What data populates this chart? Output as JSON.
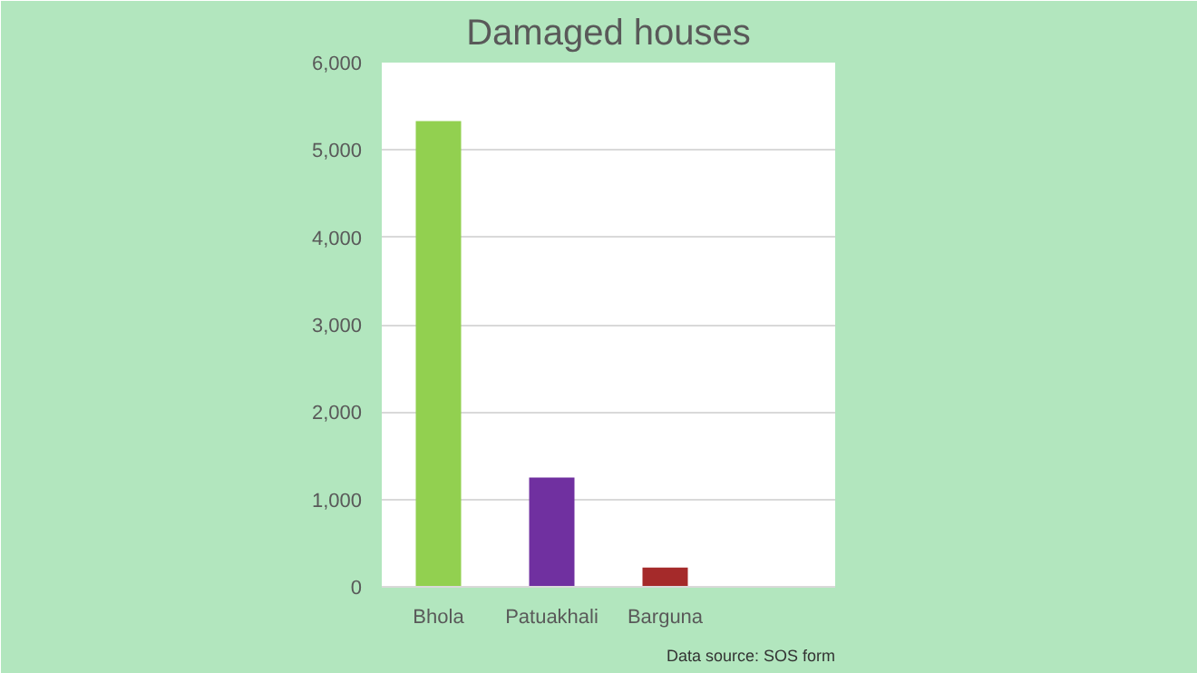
{
  "chart_data": {
    "type": "bar",
    "title": "Damaged houses",
    "categories": [
      "Bhola",
      "Patuakhali",
      "Barguna",
      null
    ],
    "values": [
      5330,
      1250,
      220,
      null
    ],
    "colors": [
      "#92d050",
      "#7030a0",
      "#a52a2a",
      null
    ],
    "ylim": [
      0,
      6000
    ],
    "yticks": [
      {
        "value": 0,
        "label": "0"
      },
      {
        "value": 1000,
        "label": "1,000"
      },
      {
        "value": 2000,
        "label": "2,000"
      },
      {
        "value": 3000,
        "label": "3,000"
      },
      {
        "value": 4000,
        "label": "4,000"
      },
      {
        "value": 5000,
        "label": "5,000"
      },
      {
        "value": 6000,
        "label": "6,000"
      }
    ],
    "grid": "y",
    "annotations": [
      "Data source: SOS form"
    ]
  }
}
